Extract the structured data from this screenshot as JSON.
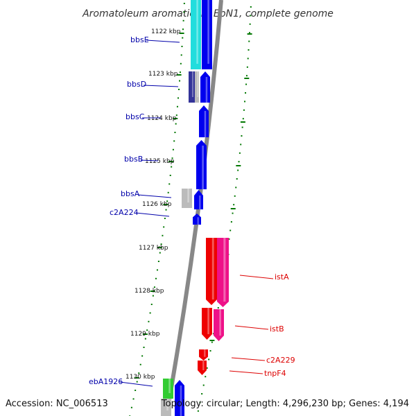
{
  "title": "Aromatoleum aromaticum EbN1, complete genome",
  "footer": {
    "accession": "Accession: NC_006513",
    "summary": "Topology: circular; Length: 4,296,230 bp; Genes: 4,194"
  },
  "colors": {
    "backbone": "#888888",
    "forward_feature_label": "#0000aa",
    "reverse_feature_label": "#dd0000",
    "tick": "#007700",
    "blue_gene": "#0000ee",
    "red_gene": "#ee0000",
    "pink_gene": "#ee1188",
    "cyan_gene": "#22dddd",
    "green_gene": "#33cc33",
    "grey_gene": "#bbbbbb",
    "navy_gene": "#333399"
  },
  "kbp_scale": [
    "1122 kbp",
    "1123 kbp",
    "1124 kbp",
    "1125 kbp",
    "1126 kbp",
    "1127 kbp",
    "1128 kbp",
    "1129 kbp",
    "1130 kbp"
  ],
  "left_labels": [
    "bbsE",
    "bbsD",
    "bbsC",
    "bbsB",
    "bbsA",
    "c2A224",
    "ebA1926"
  ],
  "right_labels": [
    "istA",
    "istB",
    "c2A229",
    "tnpF4"
  ]
}
